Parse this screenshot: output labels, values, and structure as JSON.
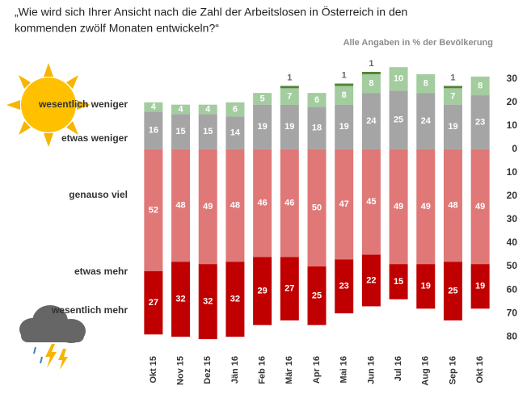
{
  "chart_data": {
    "type": "diverging_stacked_bar",
    "title": [
      "„Wie wird sich Ihrer Ansicht nach die Zahl der Arbeitslosen in Österreich in den",
      "kommenden  zwölf Monaten entwickeln?“"
    ],
    "subtitle": "Alle Angaben  in % der Bevölkerung",
    "categories": [
      "Okt 15",
      "Nov 15",
      "Dez 15",
      "Jän 16",
      "Feb 16",
      "Mär 16",
      "Apr 16",
      "Mai 16",
      "Jun 16",
      "Jul 16",
      "Aug 16",
      "Sep 16",
      "Okt 16"
    ],
    "series": [
      {
        "name": "etwas weniger",
        "color": "#a5a5a5",
        "values": [
          16,
          15,
          15,
          14,
          19,
          19,
          18,
          19,
          24,
          25,
          24,
          19,
          23
        ]
      },
      {
        "name": "wesentlich weniger",
        "color": "#a3cc9f",
        "values": [
          4,
          4,
          4,
          6,
          5,
          7,
          6,
          8,
          8,
          10,
          8,
          7,
          8
        ]
      },
      {
        "color": "#548235",
        "values": [
          null,
          null,
          null,
          null,
          null,
          1,
          null,
          1,
          1,
          null,
          null,
          1,
          null
        ]
      },
      {
        "name": "genauso viel",
        "color": "#e07878",
        "values": [
          -52,
          -48,
          -49,
          -48,
          -46,
          -46,
          -50,
          -47,
          -45,
          -49,
          -49,
          -48,
          -49
        ],
        "value_labels": [
          "52",
          "48",
          "49",
          "48",
          "46",
          "46",
          "50",
          "47",
          "45",
          "49",
          "49",
          "48",
          "49"
        ]
      },
      {
        "name": "etwas mehr",
        "color": "#c00000",
        "values": [
          -27,
          -32,
          -32,
          -32,
          -29,
          -27,
          -25,
          -23,
          -22,
          -15,
          -19,
          -25,
          -19
        ],
        "value_labels": [
          "27",
          "32",
          "32",
          "32",
          "29",
          "27",
          "25",
          "23",
          "22",
          "15",
          "19",
          "25",
          "19"
        ]
      }
    ],
    "series_labels": [
      "wesentlich weniger",
      "etwas weniger",
      "genauso viel",
      "etwas mehr",
      "wesentlich mehr"
    ],
    "ylim": [
      33,
      -82
    ],
    "yticks": [
      30,
      20,
      10,
      0,
      {
        "value": -10,
        "label": "10"
      },
      {
        "value": -20,
        "label": "20"
      },
      {
        "value": -30,
        "label": "30"
      },
      {
        "value": -40,
        "label": "40"
      },
      {
        "value": -50,
        "label": "50"
      },
      {
        "value": -60,
        "label": "60"
      },
      {
        "value": -70,
        "label": "70"
      },
      {
        "value": -80,
        "label": "80"
      }
    ],
    "grid": false
  }
}
